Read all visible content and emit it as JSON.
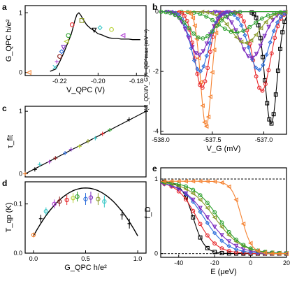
{
  "colors": {
    "black": "#000000",
    "red": "#e8262a",
    "orange": "#f58231",
    "green": "#2ca02c",
    "olive": "#8a9a2a",
    "purple": "#7b2cbf",
    "blue": "#2f6fdb",
    "cyan": "#33c6c6",
    "magenta": "#b03fd3",
    "darkred": "#8b1a1a",
    "yellowgreen": "#b5cf2f"
  },
  "panels": {
    "a": {
      "label": "a",
      "ylabel": "G_QPC h/e²",
      "xlabel": "V_QPC (V)",
      "xticks": [
        "-0.22",
        "-0.20",
        "-0.18"
      ],
      "yticks": [
        "0",
        "1"
      ]
    },
    "b": {
      "label": "b",
      "ylabel": "(∂I_QD/∂V_G)/I_QD^max (mV⁻¹)",
      "xlabel": "V_G (mV)",
      "xticks": [
        "-538.0",
        "-537.5",
        "-537.0"
      ],
      "yticks": [
        "0",
        "-2",
        "-4"
      ]
    },
    "c": {
      "label": "c",
      "ylabel": "τ_fit",
      "yticks": [
        "0",
        "1"
      ]
    },
    "d": {
      "label": "d",
      "ylabel": "T_qp (K)",
      "xlabel": "G_QPC h/e²",
      "xticks": [
        "0.0",
        "0.5",
        "1.0"
      ],
      "yticks": [
        "0.1",
        "0.0"
      ]
    },
    "e": {
      "label": "e",
      "ylabel": "f_D",
      "xlabel": "E (μeV)",
      "xticks": [
        "-40",
        "-20",
        "0",
        "20"
      ],
      "yticks": [
        "1",
        "0"
      ]
    }
  },
  "chart_data": [
    {
      "panel": "a",
      "type": "line",
      "xlabel": "V_QPC (V)",
      "ylabel": "G_QPC h/e²",
      "xlim": [
        -0.238,
        -0.175
      ],
      "ylim": [
        -0.05,
        1.12
      ],
      "series": [
        {
          "points": [
            [
              -0.225,
              0.02
            ],
            [
              -0.222,
              0.06
            ],
            [
              -0.22,
              0.18
            ],
            [
              -0.218,
              0.32
            ],
            [
              -0.216,
              0.48
            ],
            [
              -0.214,
              0.64
            ],
            [
              -0.213,
              0.76
            ],
            [
              -0.212,
              0.88
            ],
            [
              -0.211,
              0.97
            ],
            [
              -0.21,
              1.0
            ],
            [
              -0.209,
              0.96
            ],
            [
              -0.208,
              0.9
            ],
            [
              -0.206,
              0.8
            ],
            [
              -0.204,
              0.74
            ],
            [
              -0.202,
              0.7
            ],
            [
              -0.2,
              0.65
            ],
            [
              -0.198,
              0.63
            ],
            [
              -0.196,
              0.6
            ],
            [
              -0.194,
              0.58
            ],
            [
              -0.192,
              0.57
            ],
            [
              -0.19,
              0.57
            ],
            [
              -0.188,
              0.56
            ],
            [
              -0.186,
              0.56
            ],
            [
              -0.184,
              0.56
            ],
            [
              -0.182,
              0.55
            ],
            [
              -0.18,
              0.55
            ],
            [
              -0.178,
              0.55
            ]
          ]
        }
      ],
      "markers": [
        {
          "x": -0.236,
          "y": 0.0,
          "color": "orange",
          "shape": "tri-left"
        },
        {
          "x": -0.2225,
          "y": 0.09,
          "color": "cyan",
          "shape": "x"
        },
        {
          "x": -0.2215,
          "y": 0.18,
          "color": "magenta",
          "shape": "cross"
        },
        {
          "x": -0.22,
          "y": 0.27,
          "color": "darkred",
          "shape": "circle"
        },
        {
          "x": -0.219,
          "y": 0.35,
          "color": "blue",
          "shape": "diamond"
        },
        {
          "x": -0.218,
          "y": 0.42,
          "color": "purple",
          "shape": "tri-down"
        },
        {
          "x": -0.2165,
          "y": 0.52,
          "color": "yellowgreen",
          "shape": "tri-left"
        },
        {
          "x": -0.2155,
          "y": 0.62,
          "color": "green",
          "shape": "circle"
        },
        {
          "x": -0.2135,
          "y": 0.8,
          "color": "red",
          "shape": "circle"
        },
        {
          "x": -0.2085,
          "y": 0.87,
          "color": "olive",
          "shape": "square"
        },
        {
          "x": -0.202,
          "y": 0.71,
          "color": "black",
          "shape": "tri-down"
        },
        {
          "x": -0.199,
          "y": 0.75,
          "color": "cyan",
          "shape": "diamond"
        },
        {
          "x": -0.193,
          "y": 0.72,
          "color": "yellowgreen",
          "shape": "circle"
        },
        {
          "x": -0.187,
          "y": 0.62,
          "color": "magenta",
          "shape": "tri-left"
        }
      ]
    },
    {
      "panel": "b",
      "type": "line",
      "xlabel": "V_G (mV)",
      "ylabel": "(∂I_QD/∂V_G)/I_QD^max (mV⁻¹)",
      "xlim": [
        -538.0,
        -536.78
      ],
      "ylim": [
        -4.1,
        0.2
      ],
      "series": [
        {
          "color": "black",
          "center": -536.93,
          "depth": -3.75,
          "width": 0.085,
          "marker": "square"
        },
        {
          "color": "red",
          "center": -537.02,
          "depth": -2.65,
          "width": 0.12,
          "marker": "circle"
        },
        {
          "color": "blue",
          "center": -537.05,
          "depth": -1.95,
          "width": 0.14,
          "marker": "diamond"
        },
        {
          "color": "purple",
          "center": -537.12,
          "depth": -1.55,
          "width": 0.16,
          "marker": "tri-down"
        },
        {
          "color": "olive",
          "center": -537.18,
          "depth": -1.05,
          "width": 0.19,
          "marker": "tri-left"
        },
        {
          "color": "green",
          "center": -537.27,
          "depth": -0.7,
          "width": 0.24,
          "marker": "circle"
        },
        {
          "color": "orange",
          "center": -537.56,
          "depth": -3.85,
          "width": 0.075,
          "marker": "tri-left"
        },
        {
          "color": "red",
          "center": -537.6,
          "depth": -2.55,
          "width": 0.1,
          "marker": "circle"
        },
        {
          "color": "blue",
          "center": -537.62,
          "depth": -2.0,
          "width": 0.12,
          "marker": "diamond"
        },
        {
          "color": "purple",
          "center": -537.63,
          "depth": -1.45,
          "width": 0.14,
          "marker": "tri-down"
        },
        {
          "color": "green",
          "center": -537.6,
          "depth": -0.9,
          "width": 0.18,
          "marker": "circle"
        }
      ]
    },
    {
      "panel": "c",
      "type": "scatter",
      "ylabel": "τ_fit",
      "xlim": [
        0,
        1
      ],
      "ylim": [
        -0.05,
        1.08
      ],
      "line": [
        [
          0,
          0
        ],
        [
          1,
          1
        ]
      ],
      "points": [
        {
          "x": 0.0,
          "y": 0.0,
          "color": "orange"
        },
        {
          "x": 0.08,
          "y": 0.07,
          "color": "black"
        },
        {
          "x": 0.12,
          "y": 0.15,
          "color": "cyan"
        },
        {
          "x": 0.2,
          "y": 0.19,
          "color": "magenta"
        },
        {
          "x": 0.25,
          "y": 0.25,
          "color": "darkred"
        },
        {
          "x": 0.33,
          "y": 0.33,
          "color": "blue"
        },
        {
          "x": 0.38,
          "y": 0.39,
          "color": "purple"
        },
        {
          "x": 0.45,
          "y": 0.44,
          "color": "yellowgreen"
        },
        {
          "x": 0.52,
          "y": 0.52,
          "color": "olive"
        },
        {
          "x": 0.58,
          "y": 0.57,
          "color": "cyan"
        },
        {
          "x": 0.64,
          "y": 0.64,
          "color": "red"
        },
        {
          "x": 0.7,
          "y": 0.7,
          "color": "green"
        },
        {
          "x": 0.86,
          "y": 0.87,
          "color": "black"
        },
        {
          "x": 1.0,
          "y": 1.0,
          "color": "black"
        }
      ]
    },
    {
      "panel": "d",
      "type": "scatter",
      "xlabel": "G_QPC h/e²",
      "ylabel": "T_qp (K)",
      "xlim": [
        -0.08,
        1.08
      ],
      "ylim": [
        0.0,
        0.145
      ],
      "fit": "parabola",
      "points": [
        {
          "x": 0.0,
          "y": 0.037,
          "color": "orange",
          "err": 0.005
        },
        {
          "x": 0.07,
          "y": 0.07,
          "color": "black",
          "err": 0.008
        },
        {
          "x": 0.12,
          "y": 0.085,
          "color": "cyan",
          "err": 0.008
        },
        {
          "x": 0.2,
          "y": 0.1,
          "color": "magenta",
          "err": 0.009
        },
        {
          "x": 0.25,
          "y": 0.105,
          "color": "darkred",
          "err": 0.01
        },
        {
          "x": 0.32,
          "y": 0.108,
          "color": "red",
          "err": 0.01
        },
        {
          "x": 0.38,
          "y": 0.112,
          "color": "yellowgreen",
          "err": 0.01
        },
        {
          "x": 0.42,
          "y": 0.115,
          "color": "green",
          "err": 0.01
        },
        {
          "x": 0.5,
          "y": 0.11,
          "color": "blue",
          "err": 0.012
        },
        {
          "x": 0.55,
          "y": 0.113,
          "color": "purple",
          "err": 0.012
        },
        {
          "x": 0.62,
          "y": 0.11,
          "color": "olive",
          "err": 0.012
        },
        {
          "x": 0.68,
          "y": 0.105,
          "color": "cyan",
          "err": 0.012
        },
        {
          "x": 0.85,
          "y": 0.078,
          "color": "black",
          "err": 0.01
        },
        {
          "x": 0.92,
          "y": 0.06,
          "color": "black",
          "err": 0.01
        }
      ]
    },
    {
      "panel": "e",
      "type": "line",
      "xlabel": "E (μeV)",
      "ylabel": "f_D",
      "xlim": [
        -50,
        20
      ],
      "ylim": [
        -0.05,
        1.15
      ],
      "hlines": [
        0,
        1
      ],
      "series": [
        {
          "color": "black",
          "e0": -32,
          "kt": 3.2,
          "marker": "square"
        },
        {
          "color": "red",
          "e0": -30,
          "kt": 5.5,
          "marker": "circle"
        },
        {
          "color": "blue",
          "e0": -26,
          "kt": 6.5,
          "marker": "diamond"
        },
        {
          "color": "purple",
          "e0": -24,
          "kt": 7.5,
          "marker": "tri-down"
        },
        {
          "color": "olive",
          "e0": -20,
          "kt": 7.5,
          "marker": "tri-left"
        },
        {
          "color": "green",
          "e0": -18,
          "kt": 7.0,
          "marker": "circle"
        },
        {
          "color": "orange",
          "e0": -5,
          "kt": 2.8,
          "marker": "tri-left"
        }
      ]
    }
  ]
}
